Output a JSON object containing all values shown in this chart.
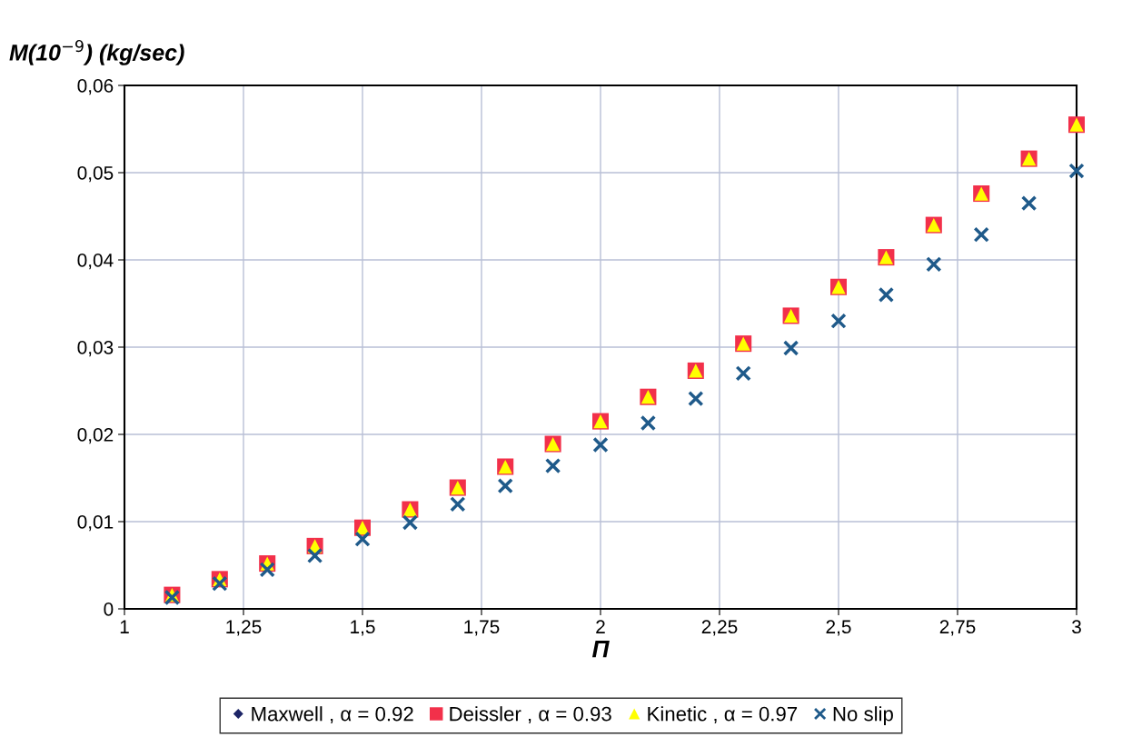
{
  "chart_data": {
    "type": "scatter",
    "ylabel": "M(10$^{−9}$) (kg/sec)",
    "xlabel": "Π",
    "x": [
      1.1,
      1.2,
      1.3,
      1.4,
      1.5,
      1.6,
      1.7,
      1.8,
      1.9,
      2.0,
      2.1,
      2.2,
      2.3,
      2.4,
      2.5,
      2.6,
      2.7,
      2.8,
      2.9,
      3.0
    ],
    "series": [
      {
        "name": "Maxwell , α = 0.92",
        "color": "#1c2466",
        "marker": "diamond",
        "values": [
          null,
          null,
          null,
          null,
          null,
          null,
          null,
          null,
          null,
          null,
          null,
          null,
          null,
          null,
          null,
          null,
          null,
          null,
          null,
          null
        ]
      },
      {
        "name": "Deissler , α = 0.93",
        "color": "#f2304a",
        "marker": "square",
        "values": [
          0.0016,
          0.0034,
          0.0052,
          0.0072,
          0.0093,
          0.0114,
          0.0139,
          0.0163,
          0.0189,
          0.0215,
          0.0243,
          0.0273,
          0.0304,
          0.0336,
          0.0369,
          0.0403,
          0.044,
          0.0476,
          0.0516,
          0.0555
        ]
      },
      {
        "name": "Kinetic , α = 0.97",
        "color": "#ffff00",
        "marker": "triangle",
        "values": [
          0.0016,
          0.0034,
          0.0052,
          0.0072,
          0.0093,
          0.0114,
          0.0139,
          0.0163,
          0.0189,
          0.0215,
          0.0243,
          0.0273,
          0.0304,
          0.0336,
          0.0369,
          0.0403,
          0.044,
          0.0476,
          0.0516,
          0.0555
        ]
      },
      {
        "name": "No slip",
        "color": "#1f5a8a",
        "marker": "cross",
        "values": [
          0.0013,
          0.0029,
          0.0045,
          0.0061,
          0.008,
          0.0099,
          0.012,
          0.0141,
          0.0164,
          0.0188,
          0.0213,
          0.0241,
          0.027,
          0.0299,
          0.033,
          0.036,
          0.0395,
          0.0429,
          0.0465,
          0.0502
        ]
      }
    ],
    "xlim": [
      1,
      3
    ],
    "xticks": [
      1,
      {
        "value": 1.25,
        "label": "1,25"
      },
      {
        "value": 1.5,
        "label": "1,5"
      },
      {
        "value": 1.75,
        "label": "1,75"
      },
      2,
      {
        "value": 2.25,
        "label": "2,25"
      },
      {
        "value": 2.5,
        "label": "2,5"
      },
      {
        "value": 2.75,
        "label": "2,75"
      },
      3
    ],
    "ylim": [
      0,
      0.06
    ],
    "yticks": [
      0,
      {
        "value": 0.01,
        "label": "0,01"
      },
      {
        "value": 0.02,
        "label": "0,02"
      },
      {
        "value": 0.03,
        "label": "0,03"
      },
      {
        "value": 0.04,
        "label": "0,04"
      },
      {
        "value": 0.05,
        "label": "0,05"
      },
      {
        "value": 0.06,
        "label": "0,06"
      }
    ],
    "grid": true,
    "legend": "bottom"
  }
}
